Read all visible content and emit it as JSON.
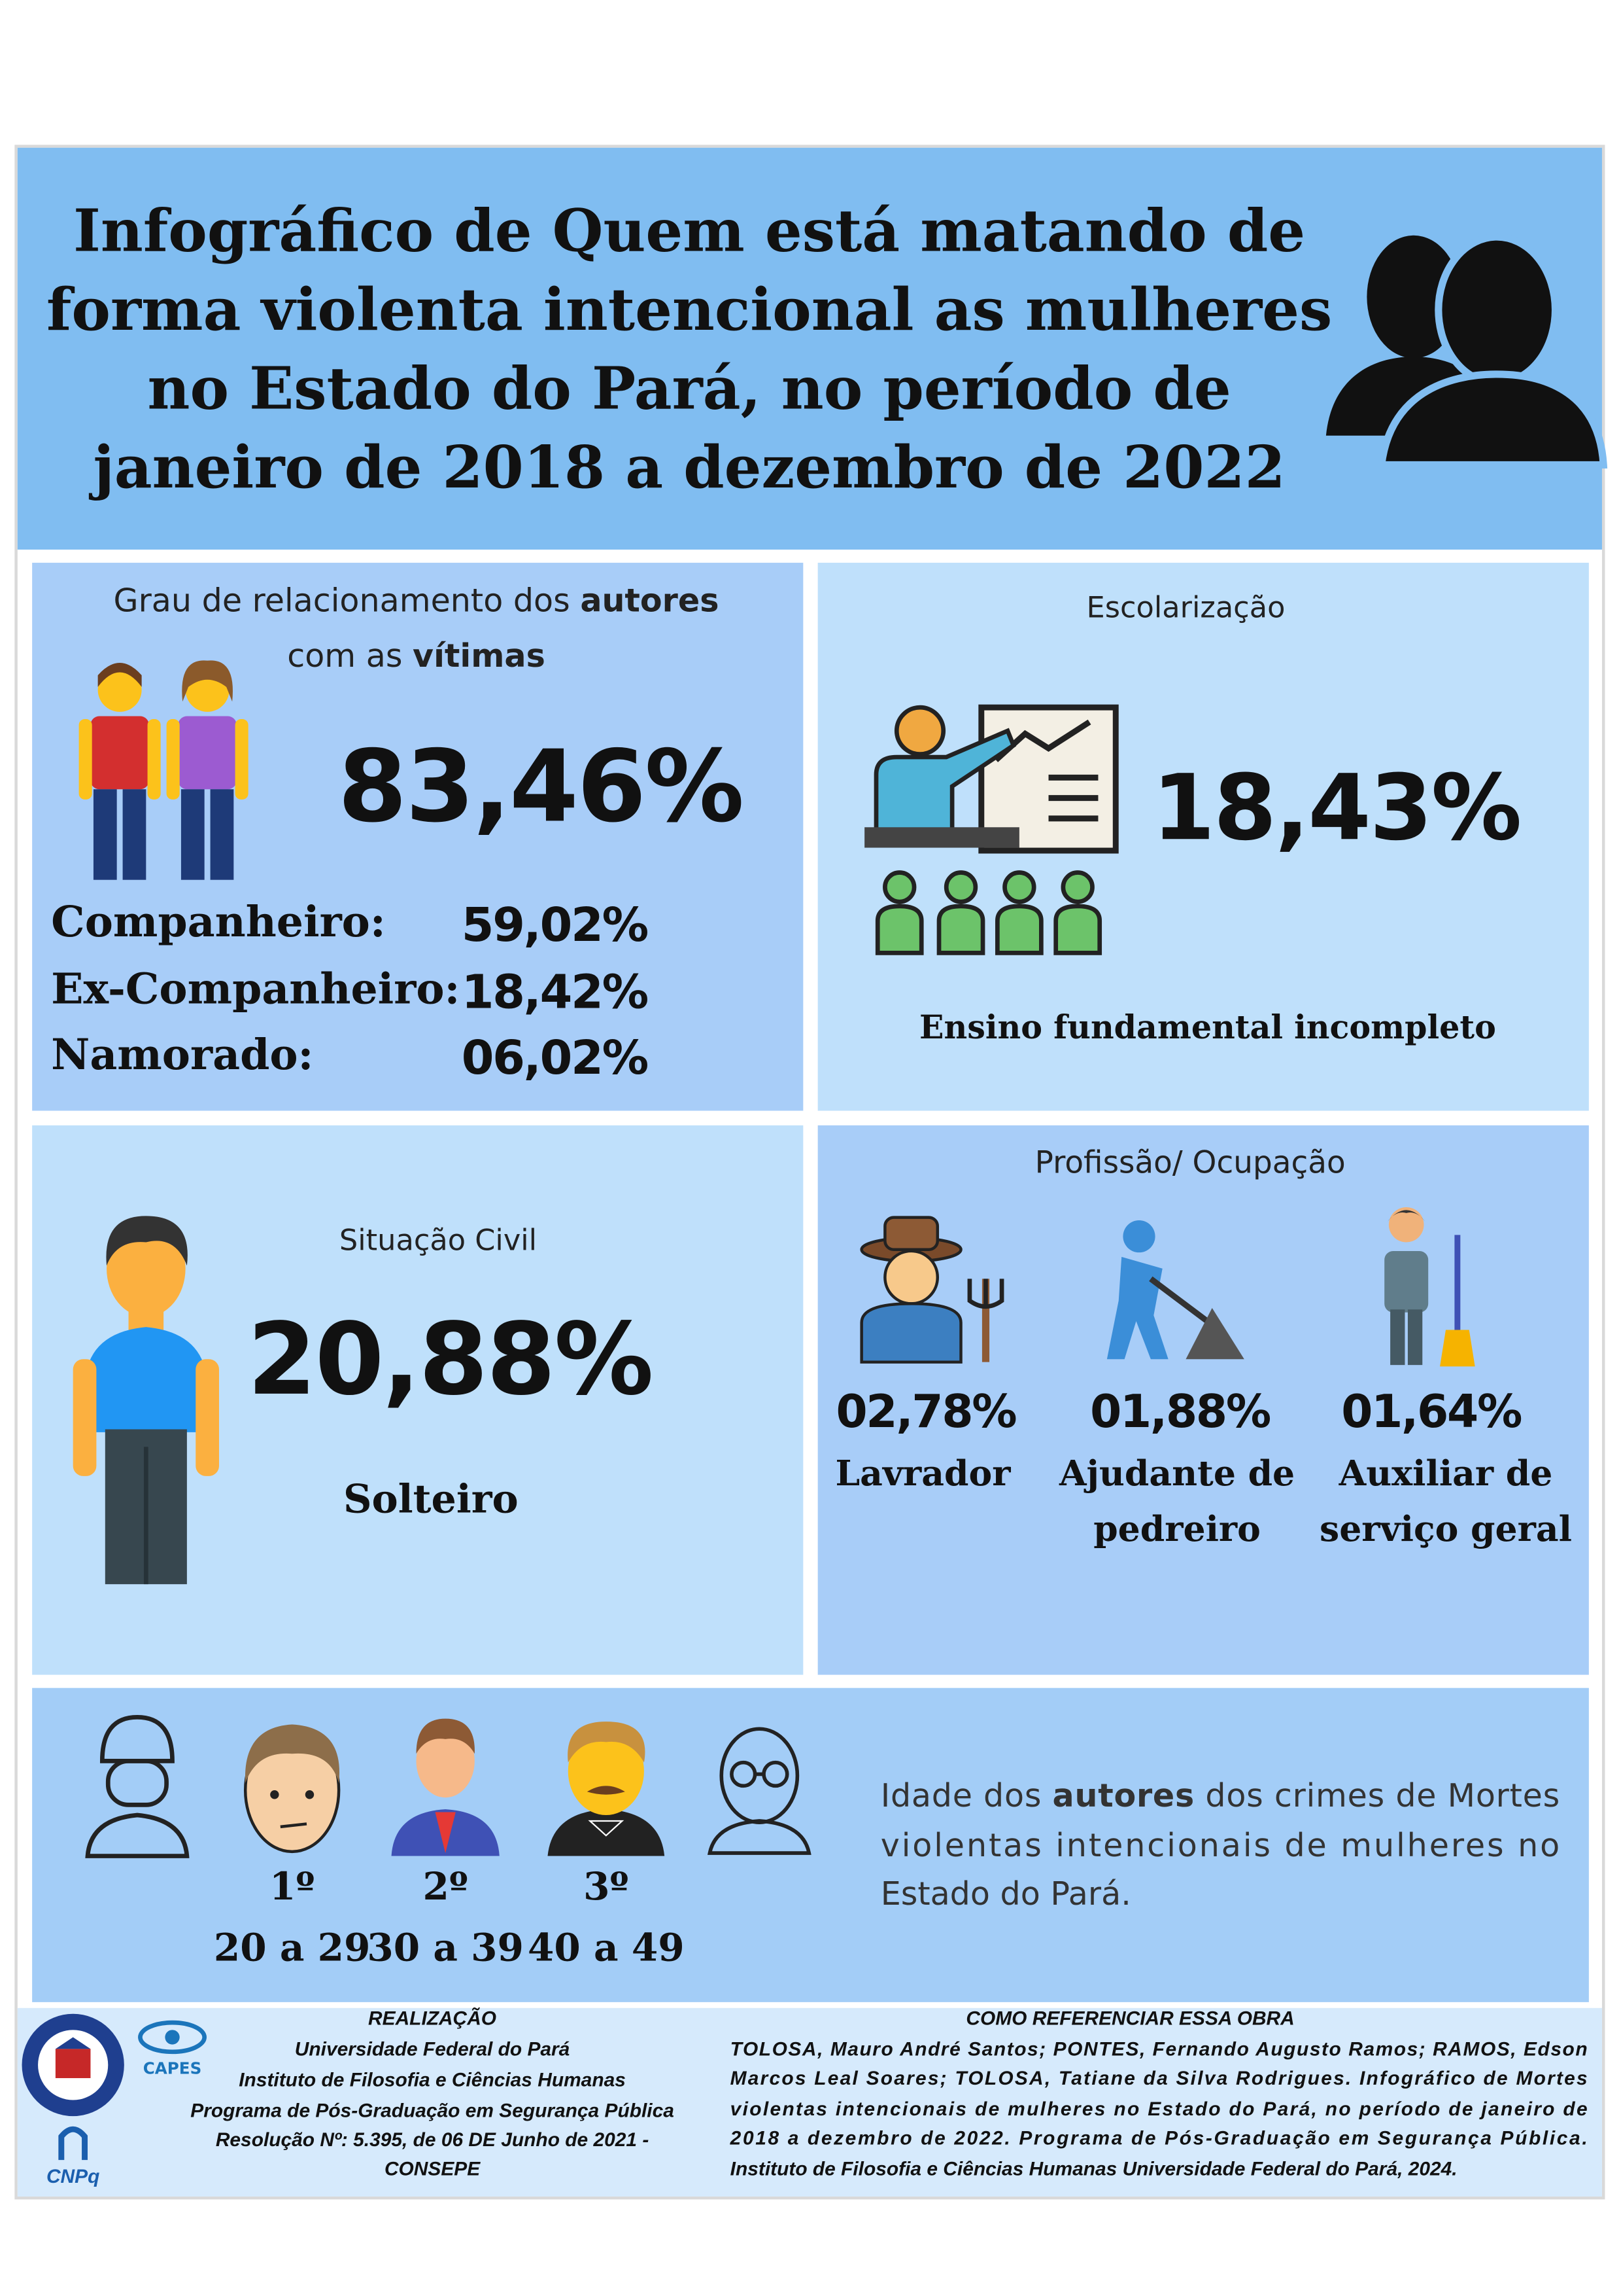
{
  "header": {
    "title_lines": [
      "Infográfico de Quem está matando de",
      "forma violenta intencional as mulheres",
      "no Estado do Pará, no período de",
      "janeiro de 2018 a dezembro de 2022"
    ]
  },
  "relationship": {
    "heading": [
      "Grau de relacionamento dos ",
      "autores",
      "com as ",
      "vítimas"
    ],
    "total": "83,46%",
    "rows": [
      {
        "label": "Companheiro:",
        "value": "59,02%"
      },
      {
        "label": "Ex-Companheiro:",
        "value": "18,42%"
      },
      {
        "label": "Namorado:",
        "value": "06,02%"
      }
    ]
  },
  "education": {
    "heading": "Escolarização",
    "value": "18,43%",
    "label": "Ensino fundamental incompleto"
  },
  "civil": {
    "heading": "Situação Civil",
    "value": "20,88%",
    "label": "Solteiro"
  },
  "occupation": {
    "heading": "Profissão/ Ocupação",
    "items": [
      {
        "value": "02,78%",
        "label_lines": [
          "Lavrador"
        ]
      },
      {
        "value": "01,88%",
        "label_lines": [
          "Ajudante de",
          "pedreiro"
        ]
      },
      {
        "value": "01,64%",
        "label_lines": [
          "Auxiliar de",
          "serviço geral"
        ]
      }
    ]
  },
  "age": {
    "ranks": [
      {
        "rank": "1º",
        "range": "20 a 29"
      },
      {
        "rank": "2º",
        "range": "30 a 39"
      },
      {
        "rank": "3º",
        "range": "40 a 49"
      }
    ],
    "description_lines": [
      [
        "Idade dos ",
        "autores",
        " dos crimes de Mortes"
      ],
      [
        "violentas intencionais de mulheres no"
      ],
      [
        "Estado do Pará."
      ]
    ]
  },
  "footer": {
    "logos": [
      "CAPES",
      "CNPq"
    ],
    "credits": {
      "heading": "REALIZAÇÃO",
      "lines": [
        "Universidade Federal do Pará",
        "Instituto de Filosofia e Ciências Humanas",
        "Programa de Pós-Graduação em Segurança Pública",
        "Resolução Nº: 5.395, de 06 DE Junho de 2021 -",
        "CONSEPE"
      ]
    },
    "reference": {
      "heading": "COMO REFERENCIAR ESSA OBRA",
      "lines": [
        "TOLOSA, Mauro André Santos; PONTES, Fernando Augusto Ramos; RAMOS, Edson",
        "Marcos Leal Soares; TOLOSA, Tatiane da Silva Rodrigues. Infográfico de Mortes",
        "violentas intencionais de mulheres no Estado do Pará, no período de janeiro de",
        "2018 a dezembro de 2022. Programa de Pós-Graduação em Segurança Pública.",
        "Instituto de Filosofia e Ciências Humanas Universidade Federal do Pará, 2024."
      ]
    }
  }
}
